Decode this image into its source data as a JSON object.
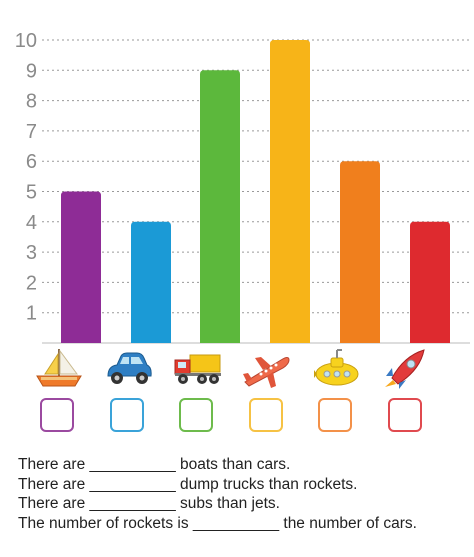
{
  "chart_data": {
    "type": "bar",
    "categories": [
      "boat",
      "car",
      "dump truck",
      "jet",
      "sub",
      "rocket"
    ],
    "values": [
      5,
      4,
      9,
      10,
      6,
      4
    ],
    "colors": [
      "#8e2c96",
      "#1b9ad6",
      "#5cb83c",
      "#f7b418",
      "#f07f1d",
      "#de2a2f"
    ],
    "yticks": [
      "1",
      "2",
      "3",
      "4",
      "5",
      "6",
      "7",
      "8",
      "9",
      "10"
    ],
    "ylim": [
      0,
      10
    ],
    "grid": true,
    "grid_style": "dashed"
  },
  "icons": [
    {
      "name": "sailboat-icon"
    },
    {
      "name": "car-icon"
    },
    {
      "name": "dump-truck-icon"
    },
    {
      "name": "jet-icon"
    },
    {
      "name": "submarine-icon"
    },
    {
      "name": "rocket-icon"
    }
  ],
  "box_colors": [
    "#9b4aa0",
    "#3aa3d9",
    "#6dbb4c",
    "#f6c244",
    "#f39149",
    "#e04a4f"
  ],
  "sentences": [
    "There are __________ boats than cars.",
    "There are __________ dump trucks than rockets.",
    "There are __________ subs than jets.",
    "The number of rockets is __________ the number of cars."
  ]
}
